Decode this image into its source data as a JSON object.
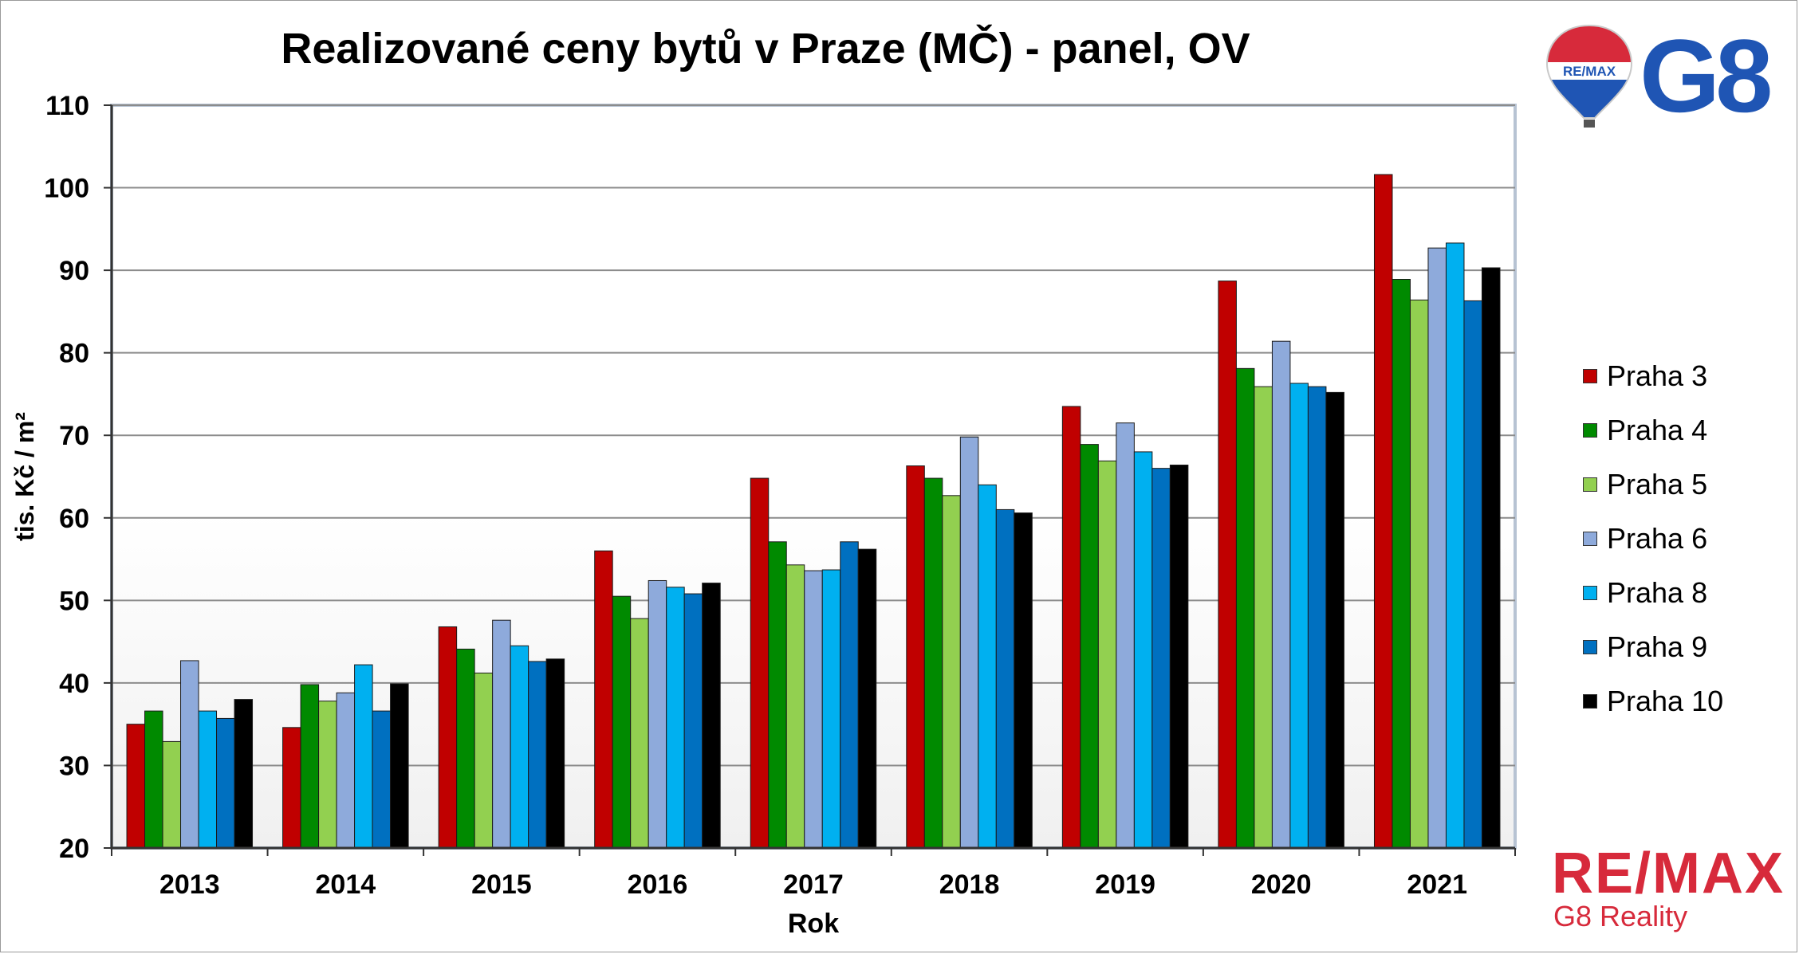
{
  "brand": {
    "balloon_text": "RE/MAX",
    "g8_logo_text": "G8",
    "remax_logo": "RE/MAX",
    "remax_subtitle": "G8 Reality"
  },
  "colors": {
    "praha3": "#c00000",
    "praha4": "#008a00",
    "praha5": "#92d050",
    "praha6": "#8eaadb",
    "praha8": "#00b0f0",
    "praha9": "#0070c0",
    "praha10": "#000000",
    "brand_red": "#d72a3b",
    "brand_blue": "#1f55b4"
  },
  "chart_data": {
    "type": "bar",
    "title": "Realizované ceny bytů v Praze (MČ) - panel, OV",
    "xlabel": "Rok",
    "ylabel": "tis. Kč / m²",
    "ylim": [
      20,
      110
    ],
    "yticks": [
      20,
      30,
      40,
      50,
      60,
      70,
      80,
      90,
      100,
      110
    ],
    "grid": true,
    "legend_position": "right",
    "categories": [
      "2013",
      "2014",
      "2015",
      "2016",
      "2017",
      "2018",
      "2019",
      "2020",
      "2021"
    ],
    "series": [
      {
        "name": "Praha 3",
        "color": "#c00000",
        "values": [
          35.0,
          34.6,
          46.8,
          56.0,
          64.8,
          66.3,
          73.5,
          88.7,
          101.6
        ]
      },
      {
        "name": "Praha 4",
        "color": "#008a00",
        "values": [
          36.6,
          39.8,
          44.1,
          50.5,
          57.1,
          64.8,
          68.9,
          78.1,
          88.9
        ]
      },
      {
        "name": "Praha 5",
        "color": "#92d050",
        "values": [
          32.9,
          37.8,
          41.2,
          47.8,
          54.3,
          62.7,
          66.9,
          75.9,
          86.4
        ]
      },
      {
        "name": "Praha 6",
        "color": "#8eaadb",
        "values": [
          42.7,
          38.8,
          47.6,
          52.4,
          53.6,
          69.8,
          71.5,
          81.4,
          92.7
        ]
      },
      {
        "name": "Praha 8",
        "color": "#00b0f0",
        "values": [
          36.6,
          42.2,
          44.5,
          51.6,
          53.7,
          64.0,
          68.0,
          76.3,
          93.3
        ]
      },
      {
        "name": "Praha 9",
        "color": "#0070c0",
        "values": [
          35.7,
          36.6,
          42.6,
          50.8,
          57.1,
          61.0,
          66.0,
          75.9,
          86.3
        ]
      },
      {
        "name": "Praha 10",
        "color": "#000000",
        "values": [
          38.0,
          39.9,
          42.9,
          52.1,
          56.2,
          60.6,
          66.4,
          75.2,
          90.3
        ]
      }
    ]
  }
}
